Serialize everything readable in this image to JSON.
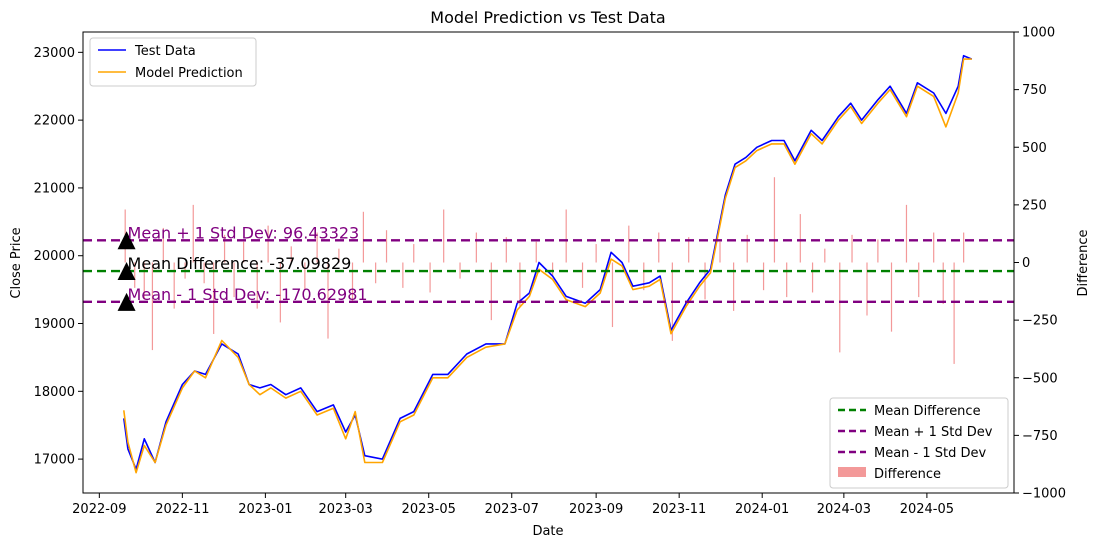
{
  "chart_data": {
    "type": "line",
    "title": "Model Prediction vs Test Data",
    "xlabel": "Date",
    "ylabel": "Close Price",
    "y2label": "Difference",
    "xlim": [
      "2022-08-20",
      "2024-07-04"
    ],
    "ylim": [
      16500,
      23300
    ],
    "y2lim": [
      -1000,
      1000
    ],
    "x_ticks": [
      "2022-09",
      "2022-11",
      "2023-01",
      "2023-03",
      "2023-05",
      "2023-07",
      "2023-09",
      "2023-11",
      "2024-01",
      "2024-03",
      "2024-05"
    ],
    "y_ticks": [
      17000,
      18000,
      19000,
      20000,
      21000,
      22000,
      23000
    ],
    "y2_ticks": [
      -1000,
      -750,
      -500,
      -250,
      0,
      250,
      500,
      750,
      1000
    ],
    "y_tick_labels": [
      "17000",
      "18000",
      "19000",
      "20000",
      "21000",
      "22000",
      "23000"
    ],
    "y2_tick_labels": [
      "−1000",
      "−750",
      "−500",
      "−250",
      "0",
      "250",
      "500",
      "750",
      "1000"
    ],
    "grid": false,
    "series": [
      {
        "name": "Test Data",
        "color": "#0000ff",
        "points": [
          [
            "2022-09-19",
            17600
          ],
          [
            "2022-09-22",
            17150
          ],
          [
            "2022-09-28",
            16850
          ],
          [
            "2022-10-04",
            17300
          ],
          [
            "2022-10-12",
            16950
          ],
          [
            "2022-10-20",
            17550
          ],
          [
            "2022-11-01",
            18100
          ],
          [
            "2022-11-10",
            18300
          ],
          [
            "2022-11-18",
            18250
          ],
          [
            "2022-11-30",
            18700
          ],
          [
            "2022-12-12",
            18550
          ],
          [
            "2022-12-20",
            18100
          ],
          [
            "2022-12-28",
            18050
          ],
          [
            "2023-01-05",
            18100
          ],
          [
            "2023-01-16",
            17950
          ],
          [
            "2023-01-27",
            18050
          ],
          [
            "2023-02-08",
            17700
          ],
          [
            "2023-02-20",
            17800
          ],
          [
            "2023-03-01",
            17400
          ],
          [
            "2023-03-08",
            17650
          ],
          [
            "2023-03-15",
            17050
          ],
          [
            "2023-03-28",
            17000
          ],
          [
            "2023-04-10",
            17600
          ],
          [
            "2023-04-20",
            17700
          ],
          [
            "2023-05-04",
            18250
          ],
          [
            "2023-05-15",
            18250
          ],
          [
            "2023-05-29",
            18550
          ],
          [
            "2023-06-12",
            18700
          ],
          [
            "2023-06-26",
            18700
          ],
          [
            "2023-07-05",
            19300
          ],
          [
            "2023-07-14",
            19450
          ],
          [
            "2023-07-21",
            19900
          ],
          [
            "2023-07-31",
            19700
          ],
          [
            "2023-08-10",
            19400
          ],
          [
            "2023-08-24",
            19300
          ],
          [
            "2023-09-04",
            19500
          ],
          [
            "2023-09-12",
            20050
          ],
          [
            "2023-09-20",
            19900
          ],
          [
            "2023-09-28",
            19550
          ],
          [
            "2023-10-10",
            19600
          ],
          [
            "2023-10-18",
            19700
          ],
          [
            "2023-10-26",
            18900
          ],
          [
            "2023-11-06",
            19300
          ],
          [
            "2023-11-16",
            19600
          ],
          [
            "2023-11-24",
            19800
          ],
          [
            "2023-12-05",
            20900
          ],
          [
            "2023-12-12",
            21350
          ],
          [
            "2023-12-20",
            21450
          ],
          [
            "2023-12-28",
            21600
          ],
          [
            "2024-01-08",
            21700
          ],
          [
            "2024-01-17",
            21700
          ],
          [
            "2024-01-25",
            21400
          ],
          [
            "2024-02-06",
            21850
          ],
          [
            "2024-02-14",
            21700
          ],
          [
            "2024-02-26",
            22050
          ],
          [
            "2024-03-06",
            22250
          ],
          [
            "2024-03-14",
            22000
          ],
          [
            "2024-03-26",
            22300
          ],
          [
            "2024-04-04",
            22500
          ],
          [
            "2024-04-16",
            22100
          ],
          [
            "2024-04-24",
            22550
          ],
          [
            "2024-05-06",
            22400
          ],
          [
            "2024-05-15",
            22100
          ],
          [
            "2024-05-24",
            22500
          ],
          [
            "2024-05-28",
            22950
          ],
          [
            "2024-06-03",
            22900
          ]
        ]
      },
      {
        "name": "Model Prediction",
        "color": "#ffa500",
        "points": [
          [
            "2022-09-19",
            17720
          ],
          [
            "2022-09-22",
            17250
          ],
          [
            "2022-09-28",
            16800
          ],
          [
            "2022-10-04",
            17200
          ],
          [
            "2022-10-12",
            16950
          ],
          [
            "2022-10-20",
            17500
          ],
          [
            "2022-11-01",
            18050
          ],
          [
            "2022-11-10",
            18300
          ],
          [
            "2022-11-18",
            18200
          ],
          [
            "2022-11-30",
            18750
          ],
          [
            "2022-12-12",
            18500
          ],
          [
            "2022-12-20",
            18100
          ],
          [
            "2022-12-28",
            17950
          ],
          [
            "2023-01-05",
            18050
          ],
          [
            "2023-01-16",
            17900
          ],
          [
            "2023-01-27",
            18000
          ],
          [
            "2023-02-08",
            17650
          ],
          [
            "2023-02-20",
            17750
          ],
          [
            "2023-03-01",
            17300
          ],
          [
            "2023-03-08",
            17700
          ],
          [
            "2023-03-15",
            16950
          ],
          [
            "2023-03-28",
            16950
          ],
          [
            "2023-04-10",
            17550
          ],
          [
            "2023-04-20",
            17650
          ],
          [
            "2023-05-04",
            18200
          ],
          [
            "2023-05-15",
            18200
          ],
          [
            "2023-05-29",
            18500
          ],
          [
            "2023-06-12",
            18650
          ],
          [
            "2023-06-26",
            18700
          ],
          [
            "2023-07-05",
            19200
          ],
          [
            "2023-07-14",
            19400
          ],
          [
            "2023-07-21",
            19800
          ],
          [
            "2023-07-31",
            19650
          ],
          [
            "2023-08-10",
            19350
          ],
          [
            "2023-08-24",
            19250
          ],
          [
            "2023-09-04",
            19450
          ],
          [
            "2023-09-12",
            19950
          ],
          [
            "2023-09-20",
            19850
          ],
          [
            "2023-09-28",
            19500
          ],
          [
            "2023-10-10",
            19550
          ],
          [
            "2023-10-18",
            19650
          ],
          [
            "2023-10-26",
            18850
          ],
          [
            "2023-11-06",
            19250
          ],
          [
            "2023-11-16",
            19550
          ],
          [
            "2023-11-24",
            19750
          ],
          [
            "2023-12-05",
            20850
          ],
          [
            "2023-12-12",
            21300
          ],
          [
            "2023-12-20",
            21400
          ],
          [
            "2023-12-28",
            21550
          ],
          [
            "2024-01-08",
            21650
          ],
          [
            "2024-01-17",
            21650
          ],
          [
            "2024-01-25",
            21350
          ],
          [
            "2024-02-06",
            21800
          ],
          [
            "2024-02-14",
            21650
          ],
          [
            "2024-02-26",
            22000
          ],
          [
            "2024-03-06",
            22200
          ],
          [
            "2024-03-14",
            21950
          ],
          [
            "2024-03-26",
            22250
          ],
          [
            "2024-04-04",
            22450
          ],
          [
            "2024-04-16",
            22050
          ],
          [
            "2024-04-24",
            22500
          ],
          [
            "2024-05-06",
            22350
          ],
          [
            "2024-05-15",
            21900
          ],
          [
            "2024-05-24",
            22400
          ],
          [
            "2024-05-28",
            22900
          ],
          [
            "2024-06-03",
            22900
          ]
        ]
      }
    ],
    "difference_bars": {
      "name": "Difference",
      "color": "#f08080",
      "points": [
        [
          "2022-09-20",
          230
        ],
        [
          "2022-09-27",
          -110
        ],
        [
          "2022-10-04",
          -160
        ],
        [
          "2022-10-10",
          -380
        ],
        [
          "2022-10-18",
          150
        ],
        [
          "2022-10-26",
          -200
        ],
        [
          "2022-11-03",
          -70
        ],
        [
          "2022-11-09",
          250
        ],
        [
          "2022-11-17",
          -90
        ],
        [
          "2022-11-24",
          -310
        ],
        [
          "2022-12-02",
          120
        ],
        [
          "2022-12-09",
          -150
        ],
        [
          "2022-12-16",
          90
        ],
        [
          "2022-12-26",
          -200
        ],
        [
          "2023-01-03",
          160
        ],
        [
          "2023-01-12",
          -260
        ],
        [
          "2023-01-20",
          70
        ],
        [
          "2023-01-30",
          -120
        ],
        [
          "2023-02-08",
          130
        ],
        [
          "2023-02-16",
          -330
        ],
        [
          "2023-02-24",
          60
        ],
        [
          "2023-03-06",
          -170
        ],
        [
          "2023-03-14",
          220
        ],
        [
          "2023-03-23",
          -90
        ],
        [
          "2023-03-31",
          140
        ],
        [
          "2023-04-12",
          -110
        ],
        [
          "2023-04-20",
          80
        ],
        [
          "2023-05-02",
          -130
        ],
        [
          "2023-05-12",
          230
        ],
        [
          "2023-05-24",
          -70
        ],
        [
          "2023-06-05",
          130
        ],
        [
          "2023-06-16",
          -250
        ],
        [
          "2023-06-27",
          110
        ],
        [
          "2023-07-07",
          -190
        ],
        [
          "2023-07-19",
          90
        ],
        [
          "2023-07-31",
          -60
        ],
        [
          "2023-08-10",
          230
        ],
        [
          "2023-08-22",
          -110
        ],
        [
          "2023-09-01",
          80
        ],
        [
          "2023-09-13",
          -280
        ],
        [
          "2023-09-25",
          160
        ],
        [
          "2023-10-06",
          -120
        ],
        [
          "2023-10-17",
          130
        ],
        [
          "2023-10-27",
          -340
        ],
        [
          "2023-11-08",
          110
        ],
        [
          "2023-11-20",
          -160
        ],
        [
          "2023-12-01",
          90
        ],
        [
          "2023-12-11",
          -210
        ],
        [
          "2023-12-21",
          120
        ],
        [
          "2024-01-02",
          -120
        ],
        [
          "2024-01-10",
          370
        ],
        [
          "2024-01-19",
          -150
        ],
        [
          "2024-01-29",
          210
        ],
        [
          "2024-02-07",
          -130
        ],
        [
          "2024-02-16",
          60
        ],
        [
          "2024-02-27",
          -390
        ],
        [
          "2024-03-07",
          120
        ],
        [
          "2024-03-18",
          -230
        ],
        [
          "2024-03-26",
          100
        ],
        [
          "2024-04-05",
          -300
        ],
        [
          "2024-04-16",
          250
        ],
        [
          "2024-04-25",
          -150
        ],
        [
          "2024-05-06",
          130
        ],
        [
          "2024-05-13",
          -180
        ],
        [
          "2024-05-21",
          -440
        ],
        [
          "2024-05-28",
          130
        ]
      ]
    },
    "reference_lines": [
      {
        "name": "Mean Difference",
        "value": -37.09829,
        "color": "#008000",
        "style": "dashed"
      },
      {
        "name": "Mean + 1 Std Dev",
        "value": 96.43323,
        "color": "#800080",
        "style": "dashed"
      },
      {
        "name": "Mean - 1 Std Dev",
        "value": -170.62981,
        "color": "#800080",
        "style": "dashed"
      }
    ],
    "annotations": [
      {
        "text": "Mean + 1 Std Dev: 96.43323",
        "value": 96.43323,
        "color": "#800080"
      },
      {
        "text": "Mean Difference: -37.09829",
        "value": -37.09829,
        "color": "#000000"
      },
      {
        "text": "Mean - 1 Std Dev: -170.62981",
        "value": -170.62981,
        "color": "#800080"
      }
    ],
    "annotation_date": "2022-09-21",
    "legend_upper": {
      "placement": "upper-left",
      "items": [
        "Test Data",
        "Model Prediction"
      ]
    },
    "legend_lower": {
      "placement": "lower-right",
      "items": [
        "Mean Difference",
        "Mean + 1 Std Dev",
        "Mean - 1 Std Dev",
        "Difference"
      ]
    }
  }
}
